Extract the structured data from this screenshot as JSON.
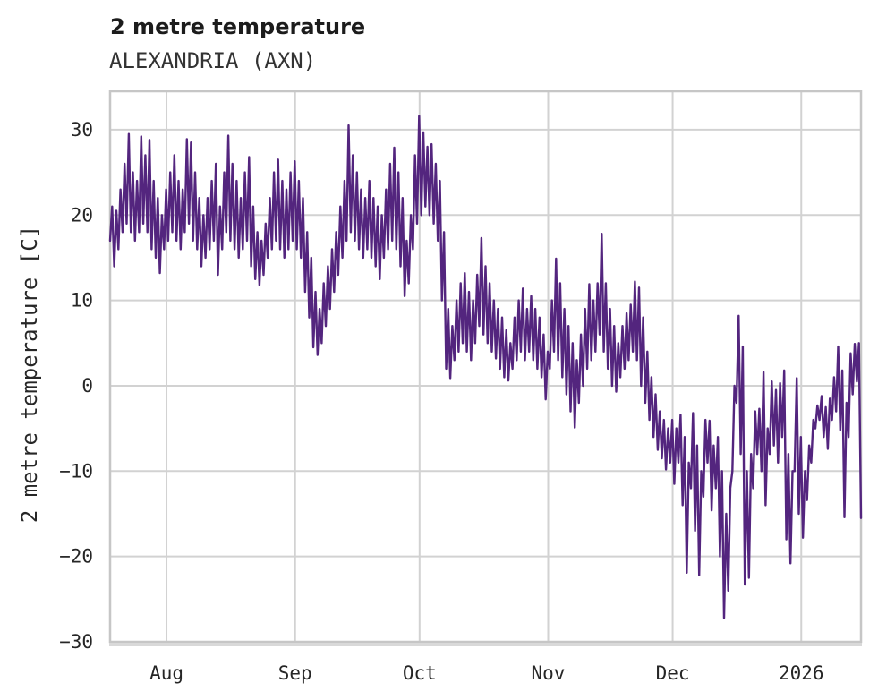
{
  "chart_data": {
    "type": "line",
    "title": "2 metre temperature",
    "subtitle": "ALEXANDRIA (AXN)",
    "xlabel": "",
    "ylabel": "2 metre temperature [C]",
    "ylim": [
      -30,
      34.5
    ],
    "yticks": [
      30,
      20,
      10,
      0,
      -10,
      -20,
      -30
    ],
    "x_tick_labels": [
      "Aug",
      "Sep",
      "Oct",
      "Nov",
      "Dec",
      "2026"
    ],
    "x_tick_days": [
      13.6,
      44.6,
      74.6,
      105.6,
      135.6,
      166.6
    ],
    "x_total_days": 181,
    "samples_per_day": 2,
    "grid": true,
    "legend": "none",
    "line_color": "#53257E",
    "grid_color": "#d2d2d2",
    "frame_color": "#c6c6c6",
    "text_color": "#262626",
    "background_color": "#ffffff",
    "series": [
      {
        "name": "2 metre temperature",
        "values": [
          17,
          21,
          14,
          20.5,
          16,
          23,
          18,
          26,
          19,
          29.5,
          18,
          25,
          17,
          24,
          18,
          29.2,
          19,
          27,
          18,
          28.8,
          16,
          24,
          15,
          22,
          13.2,
          20,
          16,
          23,
          17,
          25,
          18,
          27,
          17,
          24,
          16,
          23,
          18,
          28.9,
          19,
          28.5,
          17,
          25,
          16,
          22,
          14,
          20,
          15,
          22,
          16,
          24,
          17,
          26,
          13,
          21,
          16,
          25,
          18,
          29.3,
          17,
          26,
          16,
          24,
          15,
          22,
          16,
          25,
          17,
          26.8,
          14,
          21,
          12.5,
          18,
          11.8,
          17,
          13,
          19,
          15,
          22,
          16,
          25,
          17,
          26.5,
          16,
          24,
          15,
          23,
          16,
          25,
          17,
          26.3,
          16,
          24,
          15,
          22,
          11,
          18,
          8,
          15,
          4.5,
          11,
          3.6,
          9,
          5,
          12,
          7,
          14,
          9,
          16,
          11,
          18,
          13,
          21,
          15,
          24,
          17,
          30.5,
          18,
          27,
          17,
          25,
          16,
          23,
          15,
          22,
          16,
          24,
          15,
          22,
          14,
          21,
          12.5,
          20,
          15,
          23,
          16,
          26,
          17,
          27.9,
          16,
          25,
          14,
          22,
          10.5,
          17,
          12,
          20,
          16,
          27,
          19,
          31.6,
          20,
          29.7,
          21,
          28,
          20,
          28.3,
          19,
          26,
          17,
          24,
          10,
          18,
          2,
          9,
          0.9,
          7,
          3,
          10,
          4,
          12,
          5,
          13.2,
          4,
          11,
          3,
          10,
          5,
          13,
          7,
          17.3,
          6,
          14,
          5,
          12,
          4,
          10,
          3.2,
          9,
          2,
          8,
          1,
          6.5,
          0.6,
          5,
          2,
          8,
          3,
          10,
          4,
          11.4,
          3,
          9,
          4,
          10.5,
          3,
          9,
          2,
          8,
          1,
          6,
          -1.6,
          4,
          2,
          10,
          4,
          14.9,
          3,
          12,
          1,
          9,
          -1,
          7,
          -3,
          5,
          -4.9,
          3,
          -2,
          6,
          0,
          9,
          2,
          11.9,
          3,
          10,
          4,
          12,
          6,
          17.8,
          4,
          12,
          2,
          9,
          0,
          7,
          -0.7,
          5,
          1,
          7,
          2,
          8.5,
          3,
          9.5,
          4,
          12.2,
          3,
          11.5,
          0,
          8,
          -2,
          4,
          -4,
          1,
          -6,
          -1,
          -7.5,
          -3,
          -8.5,
          -4,
          -9.8,
          -5,
          -9,
          -4,
          -11.5,
          -5,
          -9,
          -3.4,
          -14,
          -6,
          -21.9,
          -9,
          -12,
          -3.2,
          -17,
          -7,
          -22.2,
          -10,
          -13,
          -4,
          -9,
          -4.1,
          -14.6,
          -7,
          -12,
          -6,
          -20,
          -10,
          -27.2,
          -15,
          -24,
          -12,
          -10,
          0,
          -2,
          8.2,
          -8,
          4.6,
          -23.3,
          -10,
          -22.5,
          -8,
          -12,
          -3,
          -8,
          -2.7,
          -10,
          1.6,
          -14,
          -5,
          -8,
          0.5,
          -7,
          -0.5,
          -9,
          0.3,
          -6,
          1.8,
          -18,
          -8,
          -20.8,
          -10,
          -10,
          0.9,
          -15,
          -6,
          -17.8,
          -10,
          -13.4,
          -7,
          -9,
          -4,
          -5,
          -2.3,
          -4,
          -1.2,
          -6,
          -2.5,
          -7.4,
          -1.5,
          -4,
          1,
          -3,
          4.6,
          -5.2,
          1.8,
          -15.4,
          -2,
          -6,
          3.8,
          -1,
          4.9,
          0.5,
          5,
          -15.5
        ]
      }
    ]
  }
}
